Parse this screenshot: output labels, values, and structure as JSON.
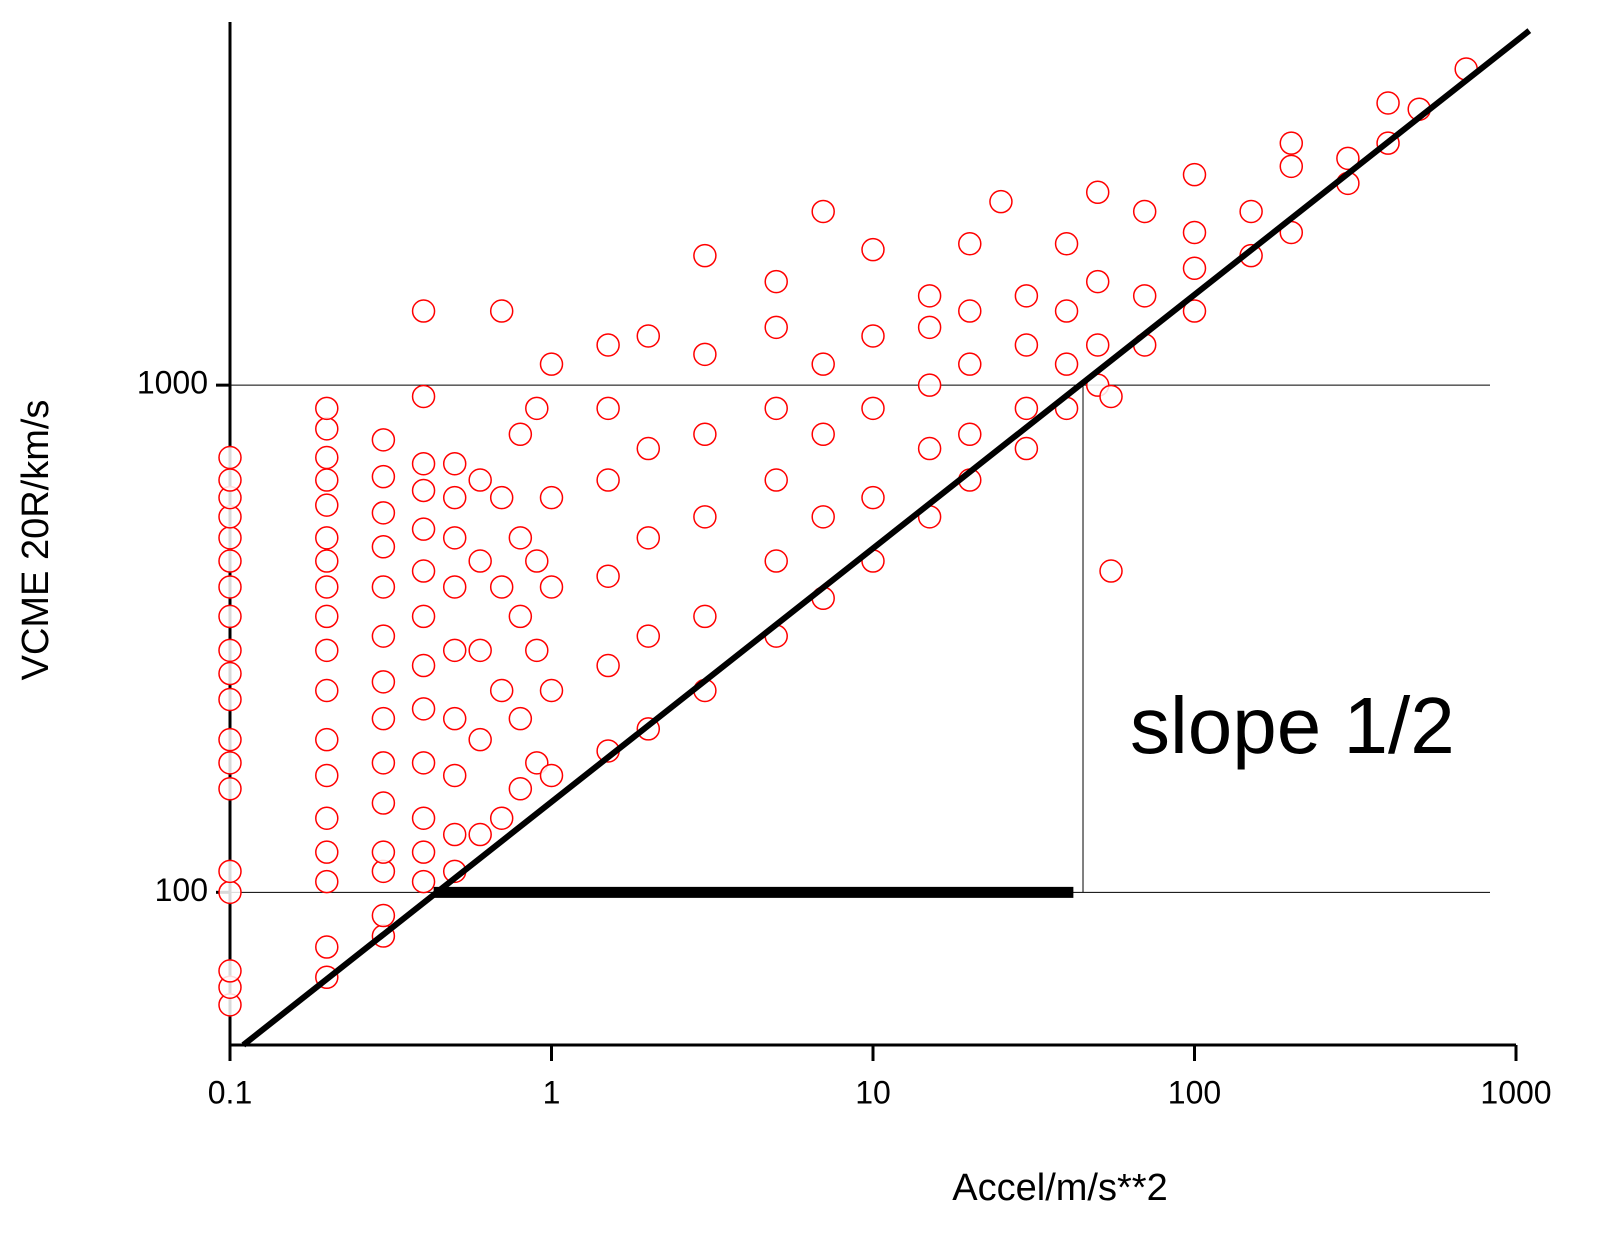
{
  "chart_data": {
    "type": "scatter",
    "xlabel": "Accel/m/s**2",
    "ylabel": "VCME 20R/km/s",
    "annotation": "slope  1/2",
    "xscale": "log",
    "yscale": "log",
    "xlim": [
      0.1,
      1000
    ],
    "ylim": [
      50,
      5200
    ],
    "xticks": [
      0.1,
      1,
      10,
      100,
      1000
    ],
    "yticks": [
      100,
      1000
    ],
    "grid": "y",
    "series": [
      {
        "color": "#ff0000",
        "x": [
          0.1,
          0.1,
          0.1,
          0.1,
          0.1,
          0.1,
          0.1,
          0.1,
          0.1,
          0.1,
          0.1,
          0.1,
          0.1,
          0.1,
          0.1,
          0.1,
          0.1,
          0.1,
          0.1,
          0.2,
          0.2,
          0.2,
          0.2,
          0.2,
          0.2,
          0.2,
          0.2,
          0.2,
          0.2,
          0.2,
          0.2,
          0.2,
          0.2,
          0.2,
          0.2,
          0.2,
          0.2,
          0.3,
          0.3,
          0.3,
          0.3,
          0.3,
          0.3,
          0.3,
          0.3,
          0.3,
          0.3,
          0.3,
          0.3,
          0.3,
          0.3,
          0.4,
          0.4,
          0.4,
          0.4,
          0.4,
          0.4,
          0.4,
          0.4,
          0.4,
          0.4,
          0.4,
          0.4,
          0.4,
          0.5,
          0.5,
          0.5,
          0.5,
          0.5,
          0.5,
          0.5,
          0.5,
          0.5,
          0.6,
          0.6,
          0.6,
          0.6,
          0.6,
          0.7,
          0.7,
          0.7,
          0.7,
          0.7,
          0.8,
          0.8,
          0.8,
          0.8,
          0.8,
          0.9,
          0.9,
          0.9,
          0.9,
          1,
          1,
          1,
          1,
          1,
          1.5,
          1.5,
          1.5,
          1.5,
          1.5,
          1.5,
          2,
          2,
          2,
          2,
          2,
          3,
          3,
          3,
          3,
          3,
          3,
          5,
          5,
          5,
          5,
          5,
          5,
          7,
          7,
          7,
          7,
          7,
          10,
          10,
          10,
          10,
          10,
          15,
          15,
          15,
          15,
          15,
          20,
          20,
          20,
          20,
          20,
          25,
          30,
          30,
          30,
          30,
          40,
          40,
          40,
          40,
          50,
          50,
          50,
          50,
          55,
          55,
          70,
          70,
          70,
          100,
          100,
          100,
          100,
          150,
          150,
          200,
          200,
          200,
          300,
          300,
          400,
          400,
          500,
          700
        ],
        "values": [
          60,
          65,
          70,
          100,
          110,
          160,
          180,
          200,
          240,
          270,
          300,
          350,
          400,
          450,
          500,
          550,
          600,
          650,
          720,
          68,
          78,
          105,
          120,
          140,
          170,
          200,
          250,
          300,
          350,
          400,
          450,
          500,
          580,
          650,
          720,
          820,
          900,
          82,
          90,
          110,
          120,
          150,
          180,
          220,
          260,
          320,
          400,
          480,
          560,
          660,
          780,
          105,
          120,
          140,
          180,
          230,
          280,
          350,
          430,
          520,
          620,
          700,
          950,
          1400,
          110,
          130,
          170,
          220,
          300,
          400,
          500,
          600,
          700,
          130,
          200,
          300,
          450,
          650,
          140,
          250,
          400,
          600,
          1400,
          160,
          220,
          350,
          500,
          800,
          180,
          300,
          450,
          900,
          170,
          250,
          400,
          600,
          1100,
          190,
          280,
          420,
          650,
          900,
          1200,
          210,
          320,
          500,
          750,
          1250,
          250,
          350,
          550,
          800,
          1800,
          1150,
          320,
          450,
          650,
          900,
          1300,
          1600,
          380,
          550,
          800,
          1100,
          2200,
          450,
          600,
          900,
          1250,
          1850,
          550,
          750,
          1000,
          1300,
          1500,
          650,
          800,
          1100,
          1400,
          1900,
          2300,
          750,
          900,
          1200,
          1500,
          900,
          1100,
          1400,
          1900,
          1000,
          1200,
          1600,
          2400,
          430,
          950,
          1200,
          1500,
          2200,
          1400,
          1700,
          2000,
          2600,
          1800,
          2200,
          2000,
          2700,
          3000,
          2500,
          2800,
          3000,
          3600,
          3500,
          4200
        ]
      }
    ],
    "lines": [
      {
        "x": [
          0.11,
          1100
        ],
        "y": [
          50,
          5000
        ],
        "color": "#000000",
        "width": 6
      },
      {
        "x": [
          45,
          45
        ],
        "y": [
          100,
          1000
        ],
        "color": "#000000",
        "width": 1
      },
      {
        "x": [
          0.43,
          42
        ],
        "y": [
          100,
          100
        ],
        "color": "#000000",
        "width": 11
      }
    ]
  }
}
